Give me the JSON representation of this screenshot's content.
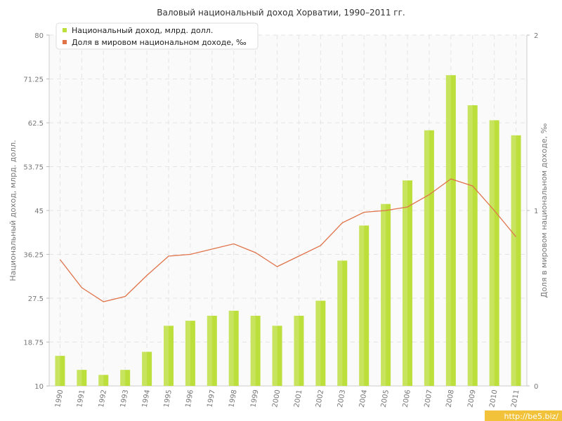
{
  "chart_data": {
    "type": "bar",
    "title": "Валовый национальный доход Хорватии, 1990–2011 гг.",
    "categories": [
      "1990",
      "1991",
      "1992",
      "1993",
      "1994",
      "1995",
      "1996",
      "1997",
      "1998",
      "1999",
      "2000",
      "2001",
      "2002",
      "2003",
      "2004",
      "2005",
      "2006",
      "2007",
      "2008",
      "2009",
      "2010",
      "2011"
    ],
    "series": [
      {
        "name": "Национальный доход, млрд. долл.",
        "type": "bar",
        "axis": "left",
        "color": "#bcdf3c",
        "values": [
          16,
          13.2,
          12.2,
          13.2,
          16.8,
          22,
          23,
          24,
          25,
          24,
          22,
          24,
          27,
          35,
          42,
          46.3,
          51,
          61,
          72,
          66,
          63,
          60
        ]
      },
      {
        "name": "Доля в мировом национальном доходе, ‰",
        "type": "line",
        "axis": "right",
        "color": "#e0734a",
        "values": [
          0.72,
          0.56,
          0.48,
          0.51,
          0.63,
          0.74,
          0.75,
          0.78,
          0.81,
          0.76,
          0.68,
          0.74,
          0.8,
          0.93,
          0.99,
          1.0,
          1.02,
          1.09,
          1.18,
          1.14,
          1.0,
          0.85
        ]
      }
    ],
    "y_left": {
      "label": "Национальный доход, млрд. долл.",
      "min": 10,
      "max": 80,
      "ticks": [
        "10",
        "18.75",
        "27.5",
        "36.25",
        "45",
        "53.75",
        "62.5",
        "71.25",
        "80"
      ]
    },
    "y_right": {
      "label": "Доля в мировом национальном доходе, ‰",
      "min": 0,
      "max": 2,
      "ticks": [
        "0",
        "1",
        "2"
      ]
    },
    "xlabel": "",
    "grid": true,
    "legend_position": "top-left"
  },
  "watermark": "http://be5.biz/"
}
